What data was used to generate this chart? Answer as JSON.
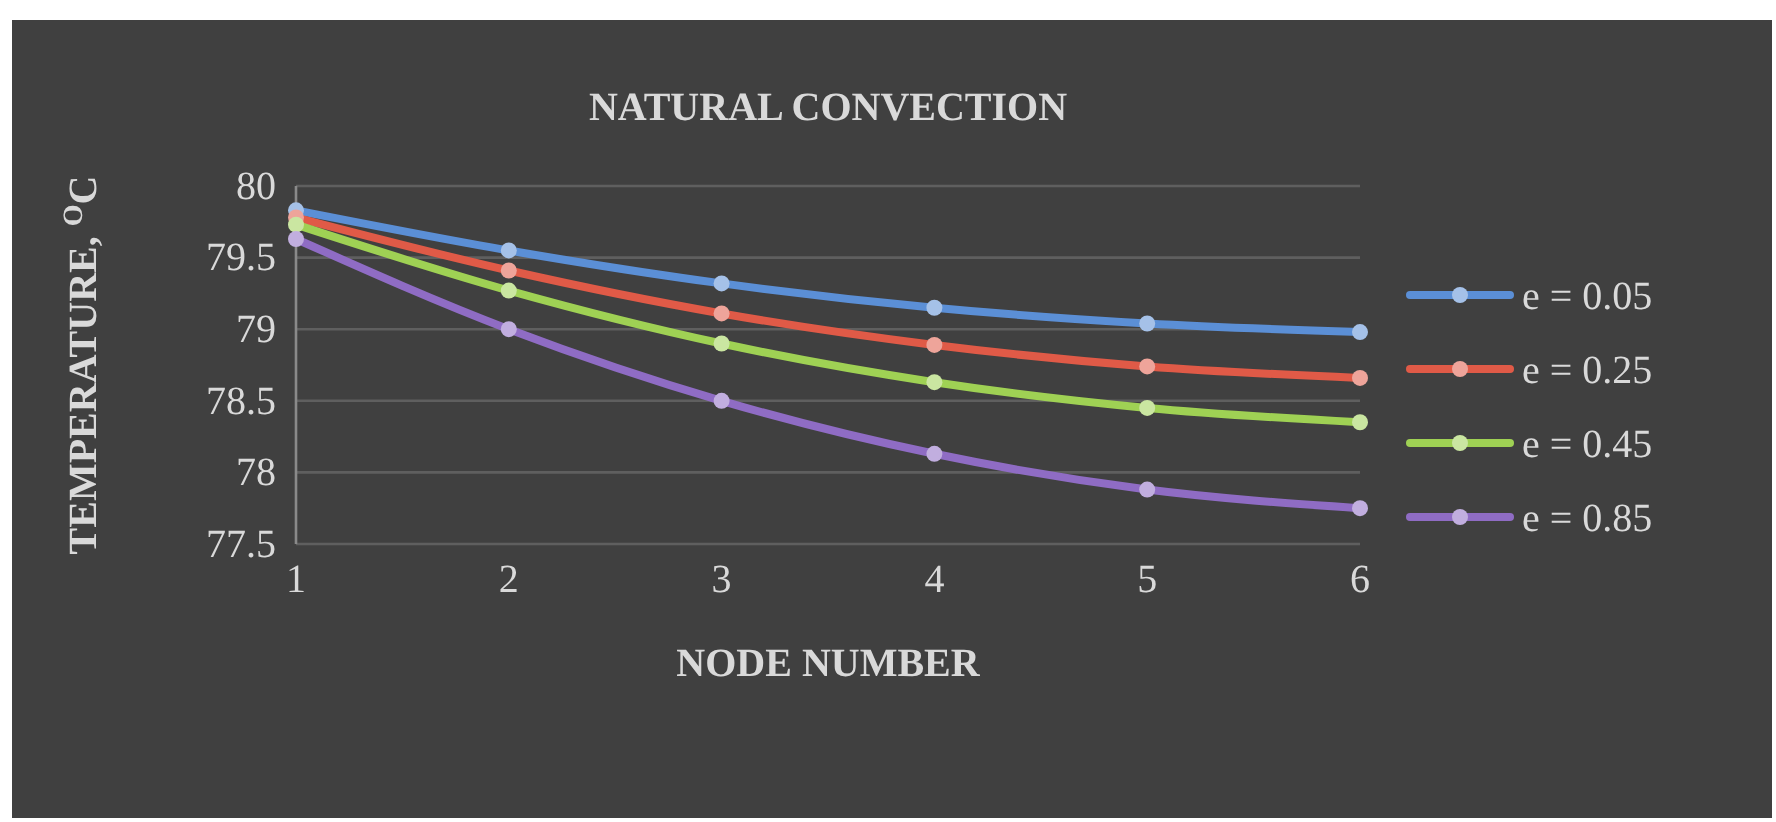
{
  "chart_data": {
    "type": "line",
    "title": "NATURAL CONVECTION",
    "xlabel": "NODE NUMBER",
    "ylabel": "TEMPERATURE, $^{O}$C",
    "x": [
      1,
      2,
      3,
      4,
      5,
      6
    ],
    "xlim": [
      1,
      6
    ],
    "xticks": [
      1,
      2,
      3,
      4,
      5,
      6
    ],
    "ylim": [
      77.5,
      80
    ],
    "yticks": [
      77.5,
      78,
      78.5,
      79,
      79.5,
      80
    ],
    "grid": "y",
    "legend": "right",
    "marker": "circle",
    "line_style": "solid",
    "series": [
      {
        "name": "e = 0.05",
        "color": "#5b8fd6",
        "values": [
          79.83,
          79.55,
          79.32,
          79.15,
          79.04,
          78.98
        ]
      },
      {
        "name": "e = 0.25",
        "color": "#e05a47",
        "values": [
          79.78,
          79.41,
          79.11,
          78.89,
          78.74,
          78.66
        ]
      },
      {
        "name": "e = 0.45",
        "color": "#9fd154",
        "values": [
          79.73,
          79.27,
          78.9,
          78.63,
          78.45,
          78.35
        ]
      },
      {
        "name": "e = 0.85",
        "color": "#8f6cc4",
        "values": [
          79.63,
          79.0,
          78.5,
          78.13,
          77.88,
          77.75
        ]
      }
    ]
  }
}
